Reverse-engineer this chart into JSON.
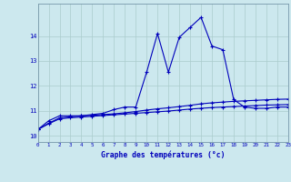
{
  "xlabel": "Graphe des températures (°c)",
  "background_color": "#cce8ee",
  "grid_color": "#aacccc",
  "line_color": "#0000bb",
  "x_ticks": [
    0,
    1,
    2,
    3,
    4,
    5,
    6,
    7,
    8,
    9,
    10,
    11,
    12,
    13,
    14,
    15,
    16,
    17,
    18,
    19,
    20,
    21,
    22,
    23
  ],
  "ylim": [
    9.75,
    15.3
  ],
  "xlim": [
    0,
    23
  ],
  "yticks": [
    10,
    11,
    12,
    13,
    14
  ],
  "series": {
    "line1": {
      "x": [
        0,
        1,
        2,
        3,
        4,
        5,
        6,
        7,
        8,
        9,
        10,
        11,
        12,
        13,
        14,
        15,
        16,
        17,
        18,
        19,
        20,
        21,
        22,
        23
      ],
      "y": [
        10.25,
        10.6,
        10.8,
        10.8,
        10.8,
        10.85,
        10.9,
        11.05,
        11.15,
        11.15,
        12.55,
        14.1,
        12.55,
        13.95,
        14.35,
        14.75,
        13.6,
        13.45,
        11.45,
        11.15,
        11.1,
        11.1,
        11.15,
        11.15
      ]
    },
    "line2": {
      "x": [
        0,
        1,
        2,
        3,
        4,
        5,
        6,
        7,
        8,
        9,
        10,
        11,
        12,
        13,
        14,
        15,
        16,
        17,
        18,
        19,
        20,
        21,
        22,
        23
      ],
      "y": [
        10.25,
        10.5,
        10.72,
        10.76,
        10.8,
        10.82,
        10.85,
        10.88,
        10.92,
        10.97,
        11.03,
        11.08,
        11.12,
        11.17,
        11.22,
        11.28,
        11.32,
        11.35,
        11.38,
        11.4,
        11.42,
        11.44,
        11.46,
        11.47
      ]
    },
    "line3": {
      "x": [
        0,
        1,
        2,
        3,
        4,
        5,
        6,
        7,
        8,
        9,
        10,
        11,
        12,
        13,
        14,
        15,
        16,
        17,
        18,
        19,
        20,
        21,
        22,
        23
      ],
      "y": [
        10.25,
        10.48,
        10.68,
        10.72,
        10.75,
        10.78,
        10.81,
        10.84,
        10.87,
        10.9,
        10.93,
        10.96,
        10.99,
        11.03,
        11.07,
        11.1,
        11.13,
        11.15,
        11.17,
        11.19,
        11.21,
        11.23,
        11.24,
        11.25
      ]
    }
  }
}
